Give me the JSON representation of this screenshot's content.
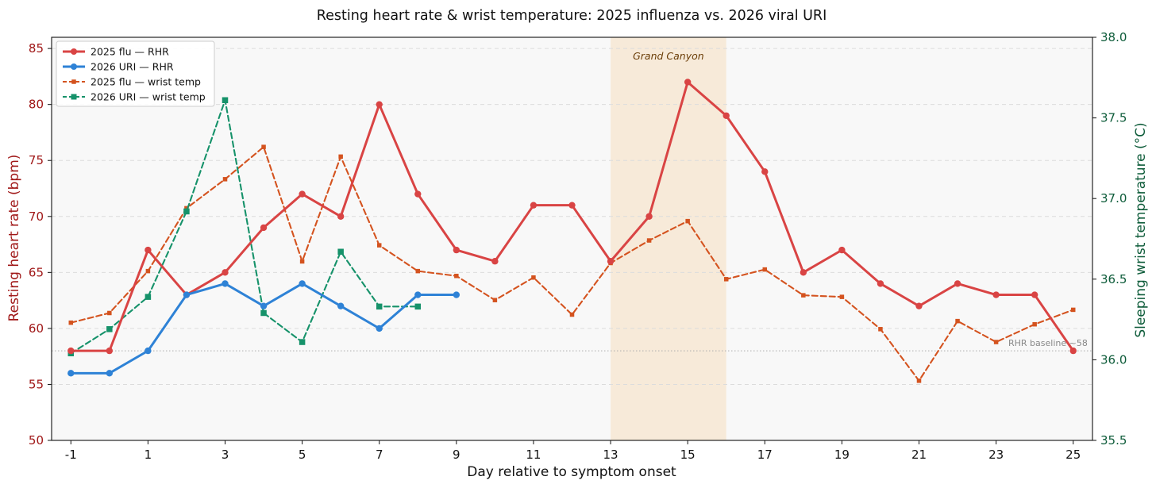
{
  "chart_data": {
    "type": "line",
    "title": "Resting heart rate & wrist temperature: 2025 influenza vs. 2026 viral URI",
    "xlabel": "Day relative to symptom onset",
    "ylabel": "Resting heart rate (bpm)",
    "y2label": "Sleeping wrist temperature (°C)",
    "xlim": [
      -1.5,
      25.5
    ],
    "ylim": [
      50,
      86
    ],
    "y2lim": [
      35.5,
      38.0
    ],
    "xticks": [
      "-1",
      "1",
      "3",
      "5",
      "7",
      "9",
      "11",
      "13",
      "15",
      "17",
      "19",
      "21",
      "23",
      "25"
    ],
    "yticks": [
      "50",
      "55",
      "60",
      "65",
      "70",
      "75",
      "80",
      "85"
    ],
    "y2ticks": [
      "35.5",
      "36.0",
      "36.5",
      "37.0",
      "37.5",
      "38.0"
    ],
    "grid": "horizontal dashed",
    "legend_position": "upper-left",
    "colors": {
      "flu_rhr": "#d94444",
      "uri_rhr": "#2e82d6",
      "flu_temp": "#d4531f",
      "uri_temp": "#16926a",
      "left_axis": "#a01818",
      "right_axis": "#0e5c3a",
      "span": "#f7e8d3",
      "baseline": "#aaaaaa",
      "plot_bg": "#f8f8f8"
    },
    "series": [
      {
        "name": "2025 flu — RHR",
        "axis": "left",
        "style": "solid-circle",
        "x": [
          -1,
          0,
          1,
          2,
          3,
          4,
          5,
          6,
          7,
          8,
          9,
          10,
          11,
          12,
          13,
          14,
          15,
          16,
          17,
          18,
          19,
          20,
          21,
          22,
          23,
          24,
          25
        ],
        "y": [
          58,
          58,
          67,
          63,
          65,
          69,
          72,
          70,
          80,
          72,
          67,
          66,
          71,
          71,
          66,
          70,
          82,
          79,
          74,
          65,
          67,
          64,
          62,
          64,
          63,
          63,
          58
        ]
      },
      {
        "name": "2026 URI — RHR",
        "axis": "left",
        "style": "solid-circle",
        "x": [
          -1,
          0,
          1,
          2,
          3,
          4,
          5,
          6,
          7,
          8,
          9
        ],
        "y": [
          56,
          56,
          58,
          63,
          64,
          62,
          64,
          62,
          60,
          63,
          63
        ]
      },
      {
        "name": "2025 flu — wrist temp",
        "axis": "right",
        "style": "dashed-square-small",
        "x": [
          -1,
          0,
          1,
          2,
          3,
          4,
          5,
          6,
          7,
          8,
          9,
          10,
          11,
          12,
          13,
          14,
          15,
          16,
          17,
          18,
          19,
          20,
          21,
          22,
          23,
          24,
          25
        ],
        "y": [
          36.23,
          36.29,
          36.55,
          36.94,
          37.12,
          37.32,
          36.61,
          37.26,
          36.71,
          36.55,
          36.52,
          36.37,
          36.51,
          36.28,
          36.6,
          36.74,
          36.86,
          36.5,
          36.56,
          36.4,
          36.39,
          36.19,
          35.87,
          36.24,
          36.11,
          36.22,
          36.31
        ]
      },
      {
        "name": "2026 URI — wrist temp",
        "axis": "right",
        "style": "dashed-square",
        "x": [
          -1,
          0,
          1,
          2,
          3,
          4,
          5,
          6,
          7,
          8
        ],
        "y": [
          36.04,
          36.19,
          36.39,
          36.92,
          37.61,
          36.29,
          36.11,
          36.67,
          36.33,
          36.33
        ]
      }
    ],
    "annotations": [
      {
        "type": "span",
        "label": "Grand Canyon",
        "x0": 13,
        "x1": 16
      },
      {
        "type": "hline",
        "label": "RHR baseline ~58",
        "y": 58
      }
    ]
  }
}
